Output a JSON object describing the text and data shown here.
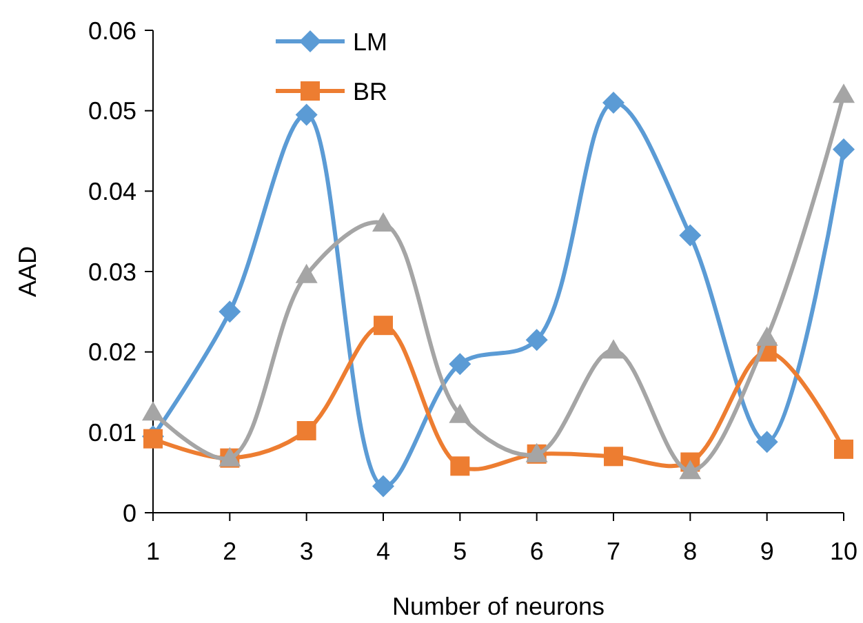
{
  "chart_data": {
    "type": "line",
    "xlabel": "Number of neurons",
    "ylabel": "AAD",
    "x": [
      1,
      2,
      3,
      4,
      5,
      6,
      7,
      8,
      9,
      10
    ],
    "xlim": [
      1,
      10
    ],
    "xticks": [
      1,
      2,
      3,
      4,
      5,
      6,
      7,
      8,
      9,
      10
    ],
    "ylim": [
      0,
      0.06
    ],
    "yticks": [
      {
        "value": 0,
        "label": "0"
      },
      {
        "value": 0.01,
        "label": "0.01"
      },
      {
        "value": 0.02,
        "label": "0.02"
      },
      {
        "value": 0.03,
        "label": "0.03"
      },
      {
        "value": 0.04,
        "label": "0.04"
      },
      {
        "value": 0.05,
        "label": "0.05"
      },
      {
        "value": 0.06,
        "label": "0.06"
      }
    ],
    "grid": false,
    "legend": "top",
    "series": [
      {
        "name": "LM",
        "color": "#5b9bd5",
        "marker": "diamond",
        "values": [
          0.0095,
          0.025,
          0.0495,
          0.0033,
          0.0185,
          0.0215,
          0.051,
          0.0345,
          0.0088,
          0.0452
        ]
      },
      {
        "name": "BR",
        "color": "#ed7d31",
        "marker": "square",
        "values": [
          0.0092,
          0.0068,
          0.0102,
          0.0233,
          0.0058,
          0.0073,
          0.007,
          0.0063,
          0.02,
          0.0079
        ]
      },
      {
        "color": "#a5a5a5",
        "marker": "triangle",
        "values": [
          0.0125,
          0.0068,
          0.0296,
          0.036,
          0.0122,
          0.0073,
          0.0202,
          0.0052,
          0.0218,
          0.052
        ]
      }
    ]
  }
}
